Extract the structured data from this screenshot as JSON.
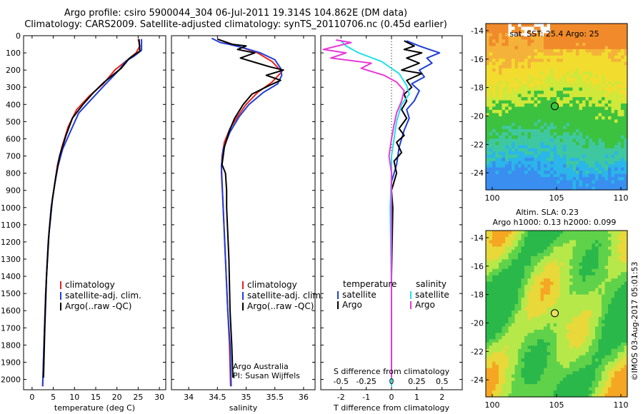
{
  "title": {
    "line1": "Argo profile: csiro 5900044_304 06-Jul-2011 19.314S 104.862E (DM data)",
    "line2": "Climatology: CARS2009. Satellite-adjusted climatology: synTS_20110706.nc (0.45d earlier)"
  },
  "colors": {
    "red": "#e8231b",
    "blue": "#1f3ed8",
    "black": "#000000",
    "cyan": "#22e0e8",
    "magenta": "#e838d8"
  },
  "chart_data": [
    {
      "type": "line",
      "title": "",
      "xlabel": "temperature (deg C)",
      "ylabel": "",
      "xlim": [
        -2,
        31.5
      ],
      "ylim": [
        2060,
        0
      ],
      "xticks": [
        0,
        5,
        10,
        15,
        20,
        25,
        30
      ],
      "yticks": [
        0,
        100,
        200,
        300,
        400,
        500,
        600,
        700,
        800,
        900,
        1000,
        1100,
        1200,
        1300,
        1400,
        1500,
        1600,
        1700,
        1800,
        1900,
        2000
      ],
      "legend": [
        "climatology",
        "satellite-adj. clim.",
        "Argo(..raw -QC)"
      ],
      "series": [
        {
          "name": "climatology",
          "color": "red",
          "points": [
            [
              25,
              20
            ],
            [
              25.4,
              60
            ],
            [
              24.5,
              100
            ],
            [
              22,
              150
            ],
            [
              19.5,
              200
            ],
            [
              16.8,
              280
            ],
            [
              13.5,
              350
            ],
            [
              10.5,
              430
            ],
            [
              8.5,
              530
            ],
            [
              7,
              650
            ],
            [
              6,
              750
            ],
            [
              5.3,
              870
            ],
            [
              4.5,
              1000
            ],
            [
              3.8,
              1200
            ],
            [
              3.2,
              1500
            ],
            [
              2.8,
              1800
            ],
            [
              2.5,
              2040
            ]
          ]
        },
        {
          "name": "satellite-adj. clim.",
          "color": "blue",
          "points": [
            [
              25.8,
              20
            ],
            [
              25.8,
              85
            ],
            [
              24,
              120
            ],
            [
              22,
              150
            ],
            [
              20.5,
              200
            ],
            [
              17,
              290
            ],
            [
              14,
              370
            ],
            [
              11,
              450
            ],
            [
              9,
              560
            ],
            [
              7.2,
              660
            ],
            [
              6.1,
              760
            ],
            [
              5.3,
              870
            ],
            [
              4.5,
              1000
            ],
            [
              3.8,
              1200
            ],
            [
              3.2,
              1500
            ],
            [
              2.8,
              1800
            ],
            [
              2.5,
              2040
            ]
          ]
        },
        {
          "name": "Argo(..raw -QC)",
          "color": "black",
          "points": [
            [
              25.2,
              20
            ],
            [
              25.4,
              90
            ],
            [
              23,
              130
            ],
            [
              21,
              190
            ],
            [
              19,
              230
            ],
            [
              17,
              270
            ],
            [
              14.5,
              330
            ],
            [
              12,
              400
            ],
            [
              9.5,
              480
            ],
            [
              8,
              580
            ],
            [
              6.5,
              700
            ],
            [
              5.6,
              820
            ],
            [
              4.8,
              950
            ],
            [
              4,
              1150
            ],
            [
              3.4,
              1400
            ],
            [
              3,
              1700
            ],
            [
              2.7,
              1990
            ]
          ]
        }
      ]
    },
    {
      "type": "line",
      "xlabel": "salinity",
      "ylabel": "",
      "xlim": [
        33.7,
        36.2
      ],
      "ylim": [
        2060,
        0
      ],
      "xticks": [
        34,
        34.5,
        35,
        35.5,
        36
      ],
      "legend": [
        "climatology",
        "satellite-adj. clim.",
        "Argo(..raw -QC)"
      ],
      "annotations": [
        "Argo Australia",
        "PI: Susan Wijffels"
      ],
      "series": [
        {
          "name": "climatology",
          "color": "red",
          "points": [
            [
              34.5,
              20
            ],
            [
              34.85,
              60
            ],
            [
              35.2,
              100
            ],
            [
              35.45,
              150
            ],
            [
              35.62,
              210
            ],
            [
              35.45,
              270
            ],
            [
              35.2,
              330
            ],
            [
              35,
              400
            ],
            [
              34.85,
              470
            ],
            [
              34.72,
              540
            ],
            [
              34.62,
              620
            ],
            [
              34.58,
              700
            ],
            [
              34.57,
              800
            ],
            [
              34.6,
              1000
            ],
            [
              34.64,
              1300
            ],
            [
              34.68,
              1600
            ],
            [
              34.71,
              1800
            ],
            [
              34.73,
              2040
            ]
          ]
        },
        {
          "name": "satellite-adj. clim.",
          "color": "blue",
          "points": [
            [
              34.4,
              15
            ],
            [
              34.55,
              40
            ],
            [
              34.7,
              50
            ],
            [
              34.95,
              70
            ],
            [
              35.25,
              100
            ],
            [
              35.5,
              140
            ],
            [
              35.6,
              190
            ],
            [
              35.62,
              230
            ],
            [
              35.55,
              280
            ],
            [
              35.3,
              330
            ],
            [
              35.05,
              400
            ],
            [
              34.88,
              470
            ],
            [
              34.72,
              560
            ],
            [
              34.6,
              660
            ],
            [
              34.57,
              760
            ],
            [
              34.6,
              1000
            ],
            [
              34.64,
              1300
            ],
            [
              34.68,
              1600
            ],
            [
              34.72,
              1800
            ],
            [
              34.74,
              2040
            ]
          ]
        },
        {
          "name": "Argo(..raw -QC)",
          "color": "black",
          "points": [
            [
              34.5,
              20
            ],
            [
              34.75,
              50
            ],
            [
              35,
              60
            ],
            [
              34.85,
              80
            ],
            [
              35.15,
              100
            ],
            [
              34.9,
              130
            ],
            [
              35.2,
              160
            ],
            [
              35.4,
              180
            ],
            [
              35.65,
              200
            ],
            [
              35.35,
              230
            ],
            [
              35.6,
              260
            ],
            [
              35.4,
              290
            ],
            [
              35.1,
              340
            ],
            [
              34.95,
              400
            ],
            [
              34.8,
              480
            ],
            [
              34.7,
              560
            ],
            [
              34.62,
              650
            ],
            [
              34.58,
              750
            ],
            [
              34.64,
              800
            ],
            [
              34.66,
              900
            ],
            [
              34.66,
              1000
            ],
            [
              34.7,
              1300
            ],
            [
              34.72,
              1600
            ],
            [
              34.75,
              1800
            ],
            [
              34.77,
              1990
            ]
          ]
        }
      ]
    },
    {
      "type": "line",
      "xlabel": "T difference from climatology",
      "toplabel": "S difference from climatology",
      "xlim": [
        -2.8,
        2.8
      ],
      "ylim": [
        2060,
        0
      ],
      "xticks": [
        -2,
        -1,
        0,
        1,
        2
      ],
      "sticks": [
        -0.5,
        -0.25,
        0,
        0.25,
        0.5
      ],
      "legend_headers": [
        "temperature",
        "salinity"
      ],
      "legend": [
        "satellite",
        "Argo",
        "satellite",
        "Argo"
      ],
      "series": [
        {
          "name": "T satellite",
          "color": "blue",
          "points": [
            [
              0.6,
              30
            ],
            [
              1.1,
              60
            ],
            [
              1.5,
              80
            ],
            [
              1.9,
              100
            ],
            [
              1.4,
              130
            ],
            [
              1.6,
              160
            ],
            [
              1.1,
              200
            ],
            [
              1.3,
              240
            ],
            [
              0.8,
              280
            ],
            [
              1.1,
              320
            ],
            [
              0.9,
              380
            ],
            [
              0.6,
              430
            ],
            [
              0.7,
              480
            ],
            [
              0.5,
              550
            ],
            [
              0.3,
              650
            ],
            [
              0.2,
              750
            ],
            [
              0,
              850
            ],
            [
              0,
              1000
            ],
            [
              0,
              1500
            ],
            [
              0,
              2040
            ]
          ]
        },
        {
          "name": "T Argo",
          "color": "black",
          "points": [
            [
              0.5,
              30
            ],
            [
              0.9,
              60
            ],
            [
              0.5,
              80
            ],
            [
              1.2,
              100
            ],
            [
              0.6,
              130
            ],
            [
              1.1,
              160
            ],
            [
              0.4,
              200
            ],
            [
              1.2,
              220
            ],
            [
              0.6,
              260
            ],
            [
              0.8,
              300
            ],
            [
              0.5,
              340
            ],
            [
              0.6,
              380
            ],
            [
              0.4,
              430
            ],
            [
              0.6,
              480
            ],
            [
              0.3,
              540
            ],
            [
              0.5,
              580
            ],
            [
              0.2,
              620
            ],
            [
              0.4,
              680
            ],
            [
              0.1,
              730
            ],
            [
              0.2,
              800
            ],
            [
              0,
              900
            ],
            [
              0.05,
              1000
            ],
            [
              0,
              1400
            ],
            [
              0,
              1990
            ]
          ]
        },
        {
          "name": "S satellite",
          "color": "cyan",
          "points": [
            [
              -2,
              30
            ],
            [
              -1.8,
              60
            ],
            [
              -1.3,
              100
            ],
            [
              -0.4,
              150
            ],
            [
              0.3,
              220
            ],
            [
              0.6,
              290
            ],
            [
              0.7,
              340
            ],
            [
              0.4,
              400
            ],
            [
              0.3,
              450
            ],
            [
              0.2,
              500
            ],
            [
              0,
              700
            ],
            [
              0,
              800
            ],
            [
              -0.05,
              1000
            ],
            [
              0,
              1500
            ],
            [
              0,
              2040
            ]
          ]
        },
        {
          "name": "S Argo",
          "color": "magenta",
          "points": [
            [
              -2.2,
              25
            ],
            [
              -1.6,
              40
            ],
            [
              -2.7,
              80
            ],
            [
              -1.8,
              100
            ],
            [
              -2.4,
              130
            ],
            [
              -0.8,
              160
            ],
            [
              -1.2,
              190
            ],
            [
              -0.3,
              230
            ],
            [
              0.2,
              270
            ],
            [
              0.5,
              320
            ],
            [
              0.4,
              380
            ],
            [
              0.2,
              450
            ],
            [
              0.1,
              520
            ],
            [
              0,
              600
            ],
            [
              -0.1,
              700
            ],
            [
              0,
              800
            ],
            [
              0,
              1000
            ],
            [
              0,
              1500
            ],
            [
              0,
              1990
            ]
          ]
        }
      ]
    },
    {
      "type": "heatmap",
      "title": "sat. SST: 25.4 Argo: 25",
      "xlim": [
        99.5,
        110.5
      ],
      "ylim": [
        -25.2,
        -13.5
      ],
      "xticks": [
        100,
        105,
        110
      ],
      "yticks": [
        -14,
        -16,
        -18,
        -20,
        -22,
        -24
      ],
      "marker": [
        104.862,
        -19.314
      ]
    },
    {
      "type": "heatmap",
      "title": "Altim. SLA: 0.23",
      "subtitle": "Argo h1000: 0.13 h2000: 0.099",
      "xlim": [
        99.5,
        110.5
      ],
      "ylim": [
        -25.2,
        -13.5
      ],
      "xticks": [
        100,
        105,
        110
      ],
      "yticks": [
        -14,
        -16,
        -18,
        -20,
        -22,
        -24
      ],
      "marker": [
        104.862,
        -19.314
      ]
    }
  ],
  "footer": "©IMOS 03-Aug-2017 05:01:53"
}
